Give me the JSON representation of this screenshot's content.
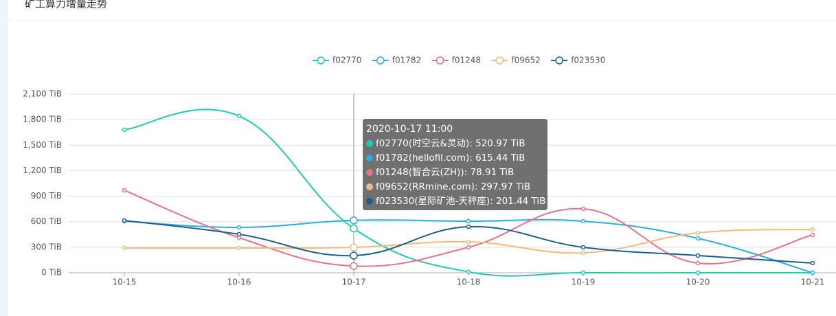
{
  "chart_data": {
    "type": "line",
    "title": "矿工算力增量走势",
    "categories": [
      "10-15",
      "10-16",
      "10-17",
      "10-18",
      "10-19",
      "10-20",
      "10-21"
    ],
    "ylim": [
      0,
      2100
    ],
    "yticks": [
      {
        "value": 0,
        "label": "0 TiB"
      },
      {
        "value": 300,
        "label": "300 TiB"
      },
      {
        "value": 600,
        "label": "600 TiB"
      },
      {
        "value": 900,
        "label": "900 TiB"
      },
      {
        "value": 1200,
        "label": "1,200 TiB"
      },
      {
        "value": 1500,
        "label": "1,500 TiB"
      },
      {
        "value": 1800,
        "label": "1,800 TiB"
      },
      {
        "value": 2100,
        "label": "2,100 TiB"
      }
    ],
    "grid": true,
    "legend": "top",
    "series": [
      {
        "name": "f02770",
        "color": "#1fcbb0",
        "values": [
          1680,
          1842,
          520.97,
          10,
          0,
          0,
          0
        ]
      },
      {
        "name": "f01782",
        "color": "#2aaee0",
        "values": [
          606,
          533,
          615.44,
          606,
          606,
          404,
          0
        ]
      },
      {
        "name": "f01248",
        "color": "#e8728a",
        "values": [
          969,
          412,
          78.91,
          299,
          751,
          113,
          444
        ]
      },
      {
        "name": "f09652",
        "color": "#f5b87e",
        "values": [
          291,
          291,
          297.97,
          363,
          234,
          468,
          509
        ]
      },
      {
        "name": "f023530",
        "color": "#1a5f8e",
        "values": [
          614,
          452,
          201.44,
          541,
          299,
          202,
          113
        ]
      }
    ],
    "tooltip": {
      "title": "2020-10-17 11:00",
      "items": [
        "f02770(时空云&灵动): 520.97 TiB",
        "f01782(hellofil.com): 615.44 TiB",
        "f01248(智合云(ZH)): 78.91 TiB",
        "f09652(RRmine.com): 297.97 TiB",
        "f023530(星际矿池-天秤座): 201.44 TiB"
      ]
    }
  }
}
